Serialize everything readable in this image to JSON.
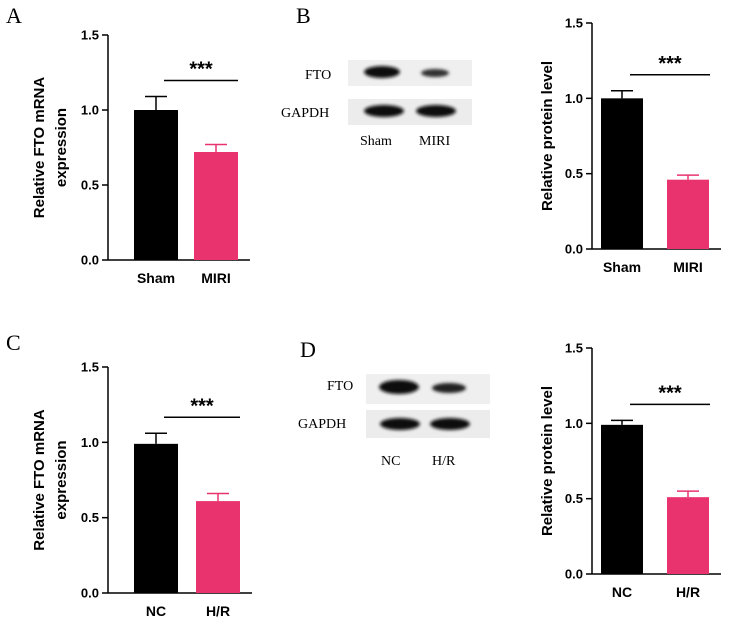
{
  "colors": {
    "sham": "#000000",
    "treat": "#e8336f"
  },
  "chart_data": [
    {
      "type": "bar",
      "panel": "A",
      "categories": [
        "Sham",
        "MIRI"
      ],
      "values": [
        1.0,
        0.72
      ],
      "errors": [
        0.09,
        0.05
      ],
      "ylabel": [
        "Relative FTO mRNA",
        "expression"
      ],
      "ylim": [
        0,
        1.5
      ],
      "yticks": [
        "0.0",
        "0.5",
        "1.0",
        "1.5"
      ],
      "significance": "***"
    },
    {
      "type": "bar",
      "panel": "B",
      "categories": [
        "Sham",
        "MIRI"
      ],
      "values": [
        1.0,
        0.46
      ],
      "errors": [
        0.05,
        0.03
      ],
      "ylabel": [
        "Relative protein level"
      ],
      "ylim": [
        0,
        1.5
      ],
      "yticks": [
        "0.0",
        "0.5",
        "1.0",
        "1.5"
      ],
      "significance": "***"
    },
    {
      "type": "bar",
      "panel": "C",
      "categories": [
        "NC",
        "H/R"
      ],
      "values": [
        0.99,
        0.61
      ],
      "errors": [
        0.07,
        0.05
      ],
      "ylabel": [
        "Relative FTO mRNA",
        "expression"
      ],
      "ylim": [
        0,
        1.5
      ],
      "yticks": [
        "0.0",
        "0.5",
        "1.0",
        "1.5"
      ],
      "significance": "***"
    },
    {
      "type": "bar",
      "panel": "D",
      "categories": [
        "NC",
        "H/R"
      ],
      "values": [
        0.99,
        0.51
      ],
      "errors": [
        0.03,
        0.04
      ],
      "ylabel": [
        "Relative protein level"
      ],
      "ylim": [
        0,
        1.5
      ],
      "yticks": [
        "0.0",
        "0.5",
        "1.0",
        "1.5"
      ],
      "significance": "***"
    }
  ],
  "blots": [
    {
      "panel": "B",
      "proteins": [
        "FTO",
        "GAPDH"
      ],
      "lanes": [
        "Sham",
        "MIRI"
      ]
    },
    {
      "panel": "D",
      "proteins": [
        "FTO",
        "GAPDH"
      ],
      "lanes": [
        "NC",
        "H/R"
      ]
    }
  ]
}
